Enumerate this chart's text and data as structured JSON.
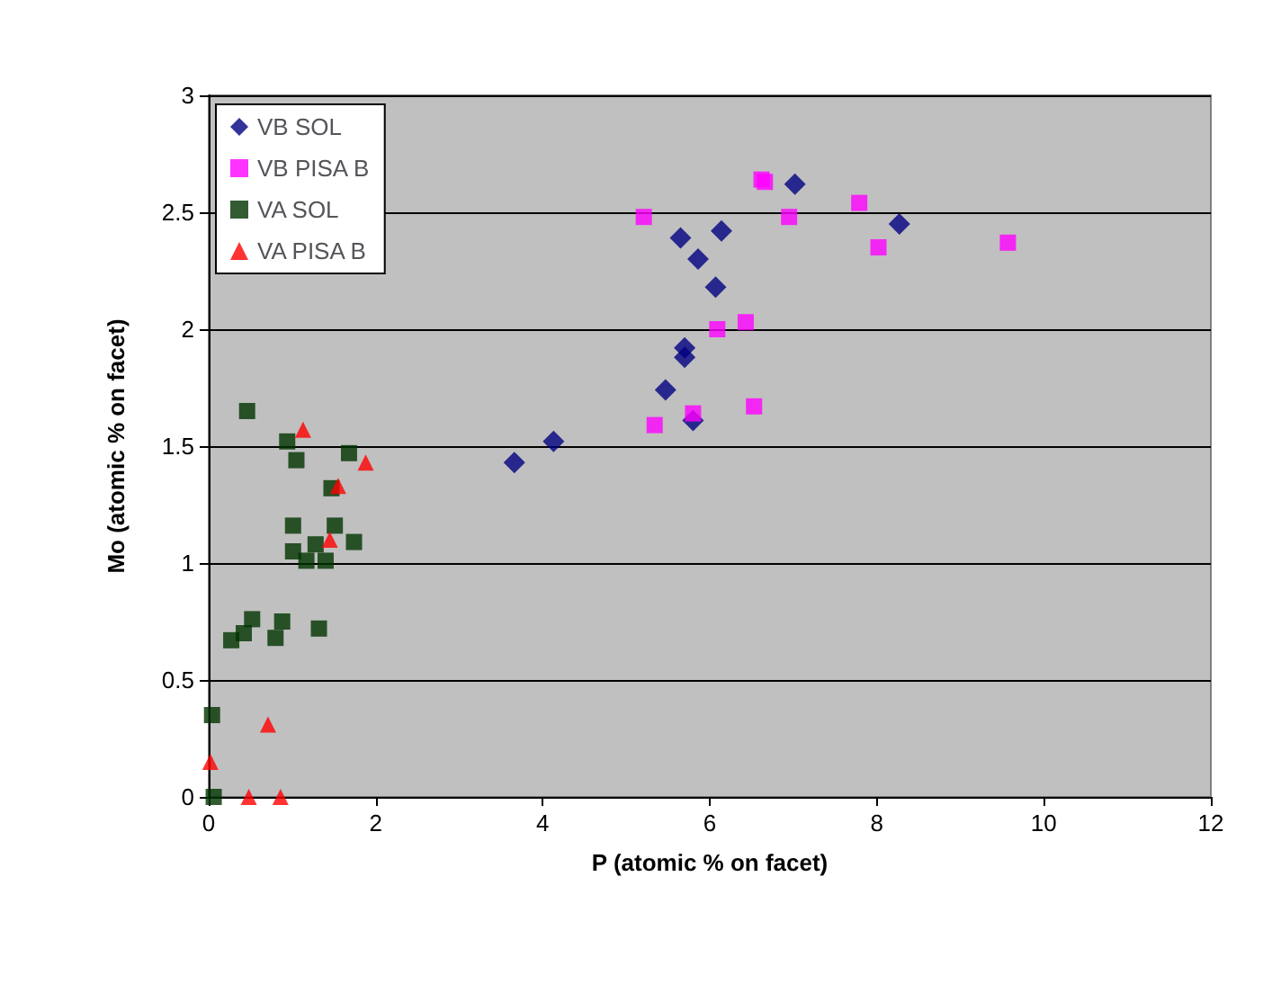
{
  "chart_data": {
    "type": "scatter",
    "xlabel": "P (atomic % on facet)",
    "ylabel": "Mo (atomic % on facet)",
    "xlim": [
      0,
      12
    ],
    "xticks": [
      0,
      2,
      4,
      6,
      8,
      10,
      12
    ],
    "ylim": [
      0,
      3
    ],
    "yticks": [
      0,
      0.5,
      1,
      1.5,
      2,
      2.5,
      3
    ],
    "grid": "y",
    "legend": "top left",
    "series": [
      {
        "name": "VB SOL",
        "color": "#000080",
        "marker": "diamond",
        "x": [
          3.66,
          4.13,
          5.47,
          5.7,
          5.7,
          5.8,
          6.07,
          5.86,
          5.65,
          6.14,
          7.02,
          8.27
        ],
        "values": [
          1.43,
          1.52,
          1.74,
          1.88,
          1.92,
          1.61,
          2.18,
          2.3,
          2.39,
          2.42,
          2.62,
          2.45
        ]
      },
      {
        "name": "VB PISA B",
        "color": "#ff00ff",
        "marker": "square",
        "x": [
          5.21,
          5.34,
          5.8,
          6.09,
          6.43,
          6.53,
          6.62,
          6.66,
          6.95,
          7.79,
          8.02,
          9.57
        ],
        "values": [
          2.48,
          1.59,
          1.64,
          2.0,
          2.03,
          1.67,
          2.64,
          2.63,
          2.48,
          2.54,
          2.35,
          2.37
        ]
      },
      {
        "name": "VA SOL",
        "color": "#003300",
        "marker": "square",
        "x": [
          0.46,
          0.94,
          1.05,
          1.68,
          1.47,
          1.01,
          1.51,
          1.74,
          1.28,
          1.01,
          1.17,
          1.4,
          0.52,
          0.42,
          0.27,
          0.88,
          0.8,
          1.32,
          0.04,
          0.06
        ],
        "values": [
          1.65,
          1.52,
          1.44,
          1.47,
          1.32,
          1.16,
          1.16,
          1.09,
          1.08,
          1.05,
          1.01,
          1.01,
          0.76,
          0.7,
          0.67,
          0.75,
          0.68,
          0.72,
          0.35,
          0
        ]
      },
      {
        "name": "VA PISA B",
        "color": "#ff0000",
        "marker": "triangle",
        "x": [
          1.13,
          1.88,
          1.55,
          1.45,
          0.71,
          0.02,
          0.48,
          0.86
        ],
        "values": [
          1.57,
          1.43,
          1.33,
          1.1,
          0.31,
          0.15,
          0,
          0
        ]
      }
    ]
  }
}
